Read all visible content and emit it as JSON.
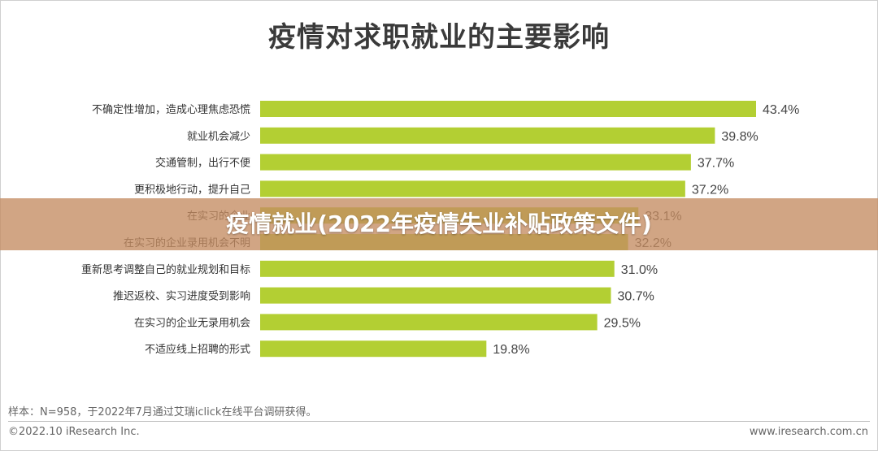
{
  "chart_data": {
    "type": "bar",
    "orientation": "horizontal",
    "title": "疫情对求职就业的主要影响",
    "categories": [
      "不确定性增加，造成心理焦虑恐慌",
      "就业机会减少",
      "交通管制，出行不便",
      "更积极地行动，提升自己",
      "在实习的企业",
      "在实习的企业录用机会不明",
      "重新思考调整自己的就业规划和目标",
      "推迟返校、实习进度受到影响",
      "在实习的企业无录用机会",
      "不适应线上招聘的形式"
    ],
    "values": [
      43.4,
      39.8,
      37.7,
      37.2,
      33.1,
      32.2,
      31.0,
      30.7,
      29.5,
      19.8
    ],
    "value_labels": [
      "43.4%",
      "39.8%",
      "37.7%",
      "37.2%",
      "33.1%",
      "32.2%",
      "31.0%",
      "30.7%",
      "29.5%",
      "19.8%"
    ],
    "xlim": [
      0,
      46
    ],
    "bar_color": "#b3cf33",
    "grid": false,
    "legend": "none"
  },
  "overlay": {
    "text": "疫情就业(2022年疫情失业补贴政策文件)",
    "color": "#c48c62"
  },
  "footer": {
    "note": "样本：N=958，于2022年7月通过艾瑞iclick在线平台调研获得。",
    "copyright": "©2022.10 iResearch Inc.",
    "website": "www.iresearch.com.cn"
  }
}
